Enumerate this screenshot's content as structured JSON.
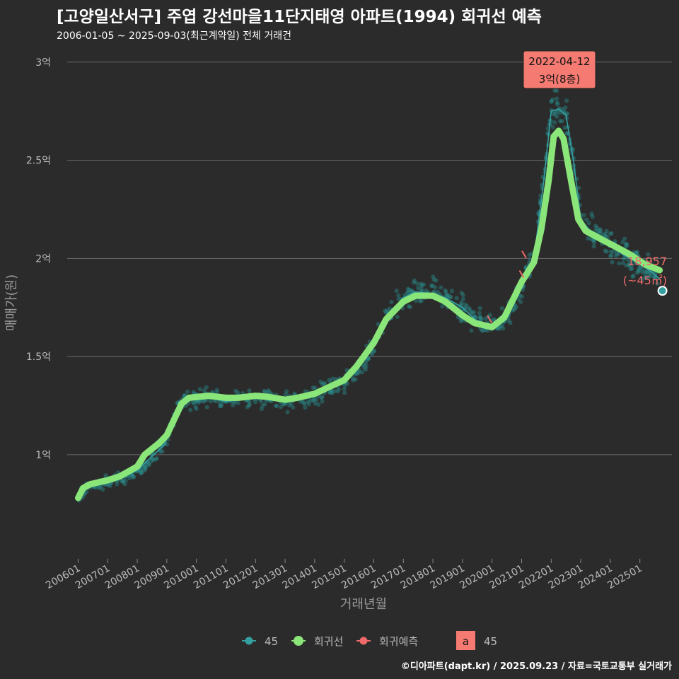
{
  "header": {
    "title": "[고양일산서구] 주엽 강선마을11단지태영 아파트(1994) 회귀선 예측",
    "subtitle": "2006-01-05 ~ 2025-09-03(최근계약일) 전체 거래건"
  },
  "caption": "©디아파트(dapt.kr) / 2025.09.23 / 자료=국토교통부 실거래가",
  "colors": {
    "background": "#2b2b2b",
    "grid": "#6a6a6a",
    "scatter": "#2a8a8a",
    "avg_line": "#35a0a0",
    "regression": "#8be67a",
    "forecast": "#f06a6a",
    "label_bg": "#f47a72"
  },
  "chart_data": {
    "type": "scatter",
    "title": "[고양일산서구] 주엽 강선마을11단지태영 아파트(1994) 회귀선 예측",
    "xlabel": "거래년월",
    "ylabel": "매매가(원)",
    "x_ticks": [
      "200601",
      "200701",
      "200801",
      "200901",
      "201001",
      "201101",
      "201201",
      "201301",
      "201401",
      "201501",
      "201601",
      "201701",
      "201801",
      "201901",
      "202001",
      "202101",
      "202201",
      "202301",
      "202401",
      "202501"
    ],
    "y_ticks": [
      {
        "value": 10000,
        "label": "1억"
      },
      {
        "value": 15000,
        "label": "1.5억"
      },
      {
        "value": 20000,
        "label": "2억"
      },
      {
        "value": 25000,
        "label": "2.5억"
      },
      {
        "value": 30000,
        "label": "3억"
      }
    ],
    "ylim": [
      4700,
      31000
    ],
    "xlim": [
      "2005-10",
      "2026-02"
    ],
    "grid": true,
    "legend_position": "bottom",
    "series": [
      {
        "name": "45",
        "kind": "monthly-average",
        "points": [
          [
            "2006-01",
            7900
          ],
          [
            "2006-06",
            8400
          ],
          [
            "2007-01",
            8600
          ],
          [
            "2007-06",
            8800
          ],
          [
            "2008-01",
            9200
          ],
          [
            "2008-06",
            9800
          ],
          [
            "2008-12",
            10500
          ],
          [
            "2009-03",
            11500
          ],
          [
            "2009-06",
            12700
          ],
          [
            "2009-09",
            12900
          ],
          [
            "2010-01",
            12800
          ],
          [
            "2010-06",
            12900
          ],
          [
            "2011-01",
            12700
          ],
          [
            "2011-06",
            12800
          ],
          [
            "2012-01",
            12900
          ],
          [
            "2012-06",
            12800
          ],
          [
            "2013-01",
            12700
          ],
          [
            "2013-06",
            12800
          ],
          [
            "2014-01",
            13000
          ],
          [
            "2014-06",
            13300
          ],
          [
            "2015-01",
            13700
          ],
          [
            "2015-06",
            14300
          ],
          [
            "2016-01",
            15600
          ],
          [
            "2016-06",
            17000
          ],
          [
            "2017-01",
            18000
          ],
          [
            "2017-06",
            18300
          ],
          [
            "2018-01",
            18200
          ],
          [
            "2018-06",
            18000
          ],
          [
            "2019-01",
            17500
          ],
          [
            "2019-06",
            16900
          ],
          [
            "2020-01",
            16500
          ],
          [
            "2020-06",
            16800
          ],
          [
            "2021-01",
            18500
          ],
          [
            "2021-06",
            20000
          ],
          [
            "2021-10",
            24000
          ],
          [
            "2022-01",
            27500
          ],
          [
            "2022-04",
            27600
          ],
          [
            "2022-07",
            27300
          ],
          [
            "2022-10",
            25000
          ],
          [
            "2023-01",
            22000
          ],
          [
            "2023-06",
            21200
          ],
          [
            "2024-01",
            20800
          ],
          [
            "2024-06",
            20200
          ],
          [
            "2025-01",
            19700
          ],
          [
            "2025-06",
            19300
          ],
          [
            "2025-09",
            18950
          ]
        ]
      },
      {
        "name": "회귀선",
        "kind": "regression",
        "points": [
          [
            "2006-01",
            7800
          ],
          [
            "2006-03",
            8300
          ],
          [
            "2006-06",
            8500
          ],
          [
            "2007-01",
            8700
          ],
          [
            "2007-06",
            8900
          ],
          [
            "2008-01",
            9400
          ],
          [
            "2008-04",
            10000
          ],
          [
            "2008-10",
            10600
          ],
          [
            "2009-01",
            11000
          ],
          [
            "2009-04",
            11800
          ],
          [
            "2009-07",
            12600
          ],
          [
            "2009-10",
            12900
          ],
          [
            "2010-06",
            13000
          ],
          [
            "2011-01",
            12900
          ],
          [
            "2011-06",
            12900
          ],
          [
            "2012-01",
            13000
          ],
          [
            "2012-06",
            12950
          ],
          [
            "2013-01",
            12800
          ],
          [
            "2013-06",
            12900
          ],
          [
            "2014-01",
            13100
          ],
          [
            "2014-06",
            13400
          ],
          [
            "2015-01",
            13800
          ],
          [
            "2015-06",
            14500
          ],
          [
            "2016-01",
            15700
          ],
          [
            "2016-06",
            16900
          ],
          [
            "2017-01",
            17800
          ],
          [
            "2017-06",
            18100
          ],
          [
            "2018-01",
            18100
          ],
          [
            "2018-06",
            17800
          ],
          [
            "2019-01",
            17100
          ],
          [
            "2019-06",
            16700
          ],
          [
            "2020-01",
            16500
          ],
          [
            "2020-06",
            17000
          ],
          [
            "2021-01",
            18800
          ],
          [
            "2021-06",
            19800
          ],
          [
            "2021-09",
            21500
          ],
          [
            "2021-12",
            24000
          ],
          [
            "2022-02",
            26200
          ],
          [
            "2022-04",
            26500
          ],
          [
            "2022-06",
            26100
          ],
          [
            "2022-09",
            24000
          ],
          [
            "2022-12",
            22000
          ],
          [
            "2023-03",
            21400
          ],
          [
            "2023-09",
            21000
          ],
          [
            "2024-03",
            20600
          ],
          [
            "2024-09",
            20200
          ],
          [
            "2025-03",
            19700
          ],
          [
            "2025-09",
            19400
          ]
        ]
      },
      {
        "name": "회귀예측",
        "kind": "forecast",
        "points": [
          [
            "2019-12",
            16900
          ],
          [
            "2021-01",
            19200
          ],
          [
            "2021-02",
            20200
          ]
        ]
      }
    ],
    "annotations": [
      {
        "date": "2022-04-12",
        "line1": "2022-04-12",
        "line2": "3억(8층)",
        "value": 30000
      },
      {
        "date": "2025-09",
        "line1": "18,957",
        "line2": "(~45㎡)",
        "value": 18957
      }
    ],
    "legend": [
      {
        "label": "45",
        "symbol": "point-line"
      },
      {
        "label": "회귀선",
        "symbol": "point-line"
      },
      {
        "label": "회귀예측",
        "symbol": "point-line"
      },
      {
        "label": "45",
        "symbol": "label-box",
        "box_text": "a"
      }
    ]
  }
}
